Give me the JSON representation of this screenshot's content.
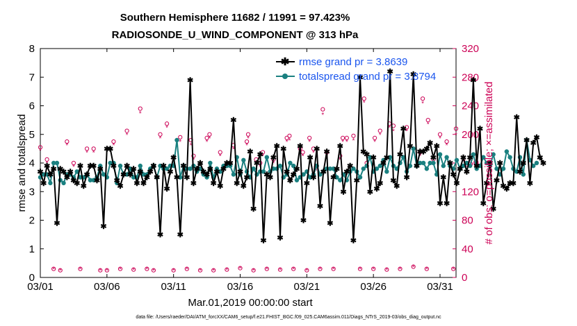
{
  "chart_data": {
    "type": "line",
    "title": "Southern Hemisphere 11682 / 11991 = 97.423%",
    "subtitle": "RADIOSONDE_U_WIND_COMPONENT @ 313 hPa",
    "xlabel": "Mar.01,2019 00:00:00 start",
    "ylabel": "rmse and totalspread",
    "ylabel_right": "# of obs: o=possible; ×=assimilated",
    "footnote": "data file: /Users/raeder/DAI/ATM_forcXX/CAM6_setup/f.e21.FHIST_BGC.f09_025.CAM6assim.011/Diags_NTrS_2019-03/obs_diag_output.nc",
    "xlim": [
      0,
      31.2
    ],
    "ylim": [
      0,
      8
    ],
    "ylim_right": [
      0,
      320
    ],
    "x_ticks": [
      0,
      5,
      10,
      15,
      20,
      25,
      30
    ],
    "x_tick_labels": [
      "03/01",
      "03/06",
      "03/11",
      "03/16",
      "03/21",
      "03/26",
      "03/31"
    ],
    "y_ticks": [
      0,
      1,
      2,
      3,
      4,
      5,
      6,
      7,
      8
    ],
    "y_ticks_right": [
      0,
      40,
      80,
      120,
      160,
      200,
      240,
      280,
      320
    ],
    "x_step_days": 0.25,
    "legend_position": "top-right",
    "series": [
      {
        "name": "rmse",
        "legend_label": "rmse grand pr = 3.8639",
        "color": "#000000",
        "marker": "star",
        "values": [
          3.7,
          3.3,
          3.9,
          3.6,
          3.8,
          1.9,
          3.8,
          3.7,
          3.5,
          3.7,
          3.4,
          3.3,
          3.9,
          3.2,
          3.6,
          3.9,
          3.9,
          3.4,
          3.8,
          1.8,
          4.5,
          4.5,
          3.9,
          3.4,
          3.2,
          3.6,
          3.9,
          3.6,
          3.8,
          3.3,
          3.7,
          3.3,
          3.5,
          3.7,
          3.9,
          3.5,
          1.5,
          3.9,
          3.1,
          3.7,
          4.2,
          3.5,
          1.5,
          3.9,
          3.5,
          6.9,
          3.3,
          3.8,
          4.0,
          3.7,
          3.6,
          3.8,
          3.3,
          3.7,
          3.2,
          3.8,
          4.0,
          4.0,
          5.5,
          3.3,
          3.7,
          3.2,
          3.5,
          4.4,
          2.4,
          4.0,
          4.3,
          1.3,
          3.6,
          3.5,
          4.2,
          4.6,
          1.4,
          4.5,
          3.7,
          3.4,
          3.6,
          3.8,
          4.6,
          2.0,
          3.3,
          4.2,
          3.5,
          4.5,
          2.5,
          3.7,
          4.4,
          1.9,
          3.5,
          3.8,
          4.6,
          3.0,
          3.7,
          3.9,
          1.3,
          3.4,
          7.0,
          4.4,
          4.3,
          3.0,
          4.2,
          3.1,
          3.3,
          4.0,
          4.2,
          7.2,
          3.4,
          3.2,
          4.3,
          5.2,
          3.5,
          4.6,
          7.1,
          3.9,
          4.4,
          4.4,
          4.5,
          4.7,
          4.2,
          4.6,
          2.6,
          3.5,
          2.6,
          4.0,
          3.6,
          3.3,
          3.8,
          4.2,
          3.7,
          4.2,
          6.9,
          3.9,
          5.2,
          2.6,
          3.3,
          4.0,
          2.4,
          3.4,
          4.0,
          3.2,
          3.1,
          3.3,
          3.3,
          5.6,
          3.7,
          4.0,
          4.8,
          3.3,
          4.7,
          4.9,
          4.2,
          4.0
        ]
      },
      {
        "name": "totalspread",
        "legend_label": "totalspread grand pr = 3.8794",
        "color": "#1a8080",
        "marker": "circle",
        "values": [
          3.5,
          3.6,
          3.6,
          3.3,
          4.0,
          4.0,
          3.4,
          3.3,
          3.6,
          3.6,
          3.5,
          3.7,
          3.5,
          3.5,
          3.6,
          3.4,
          3.4,
          3.5,
          3.9,
          3.6,
          3.5,
          4.0,
          4.0,
          3.3,
          3.9,
          3.6,
          3.6,
          3.8,
          3.5,
          3.5,
          3.9,
          3.6,
          3.6,
          3.8,
          3.9,
          3.5,
          3.9,
          3.8,
          3.8,
          3.9,
          3.9,
          4.8,
          3.5,
          3.9,
          3.8,
          3.8,
          3.9,
          3.7,
          3.8,
          3.6,
          3.5,
          4.0,
          3.5,
          3.8,
          3.7,
          3.9,
          3.9,
          3.9,
          3.6,
          4.2,
          3.6,
          4.1,
          3.7,
          3.5,
          3.8,
          3.6,
          3.7,
          3.7,
          4.2,
          3.7,
          3.8,
          3.8,
          3.9,
          3.5,
          3.6,
          4.0,
          3.9,
          3.4,
          3.5,
          3.6,
          3.7,
          3.5,
          3.6,
          3.9,
          3.6,
          3.7,
          3.8,
          3.8,
          3.8,
          3.5,
          3.4,
          3.6,
          3.4,
          3.7,
          3.8,
          3.7,
          3.5,
          3.8,
          3.9,
          4.2,
          3.7,
          3.8,
          3.9,
          4.1,
          3.7,
          4.2,
          3.9,
          3.8,
          4.0,
          4.2,
          3.7,
          3.9,
          4.5,
          3.9,
          4.0,
          4.0,
          3.8,
          4.0,
          4.0,
          3.6,
          4.3,
          3.9,
          4.2,
          3.9,
          3.8,
          4.1,
          3.8,
          3.9,
          4.0,
          3.9,
          4.3,
          3.8,
          3.9,
          4.2,
          4.0,
          3.9,
          4.3,
          3.8,
          3.6,
          3.8,
          4.4,
          4.2,
          3.8,
          3.7,
          4.2,
          3.6,
          4.8,
          4.1,
          3.9,
          4.0
        ]
      },
      {
        "name": "obs possible",
        "color": "#cc0055",
        "marker": "open-circle",
        "axis": "right",
        "values": [
          [
            0,
            182
          ],
          [
            0.5,
            165
          ],
          [
            1,
            12
          ],
          [
            1.5,
            10
          ],
          [
            2,
            190
          ],
          [
            2.5,
            160
          ],
          [
            3,
            12
          ],
          [
            3.5,
            180
          ],
          [
            4,
            180
          ],
          [
            4.5,
            10
          ],
          [
            5,
            10
          ],
          [
            5.5,
            190
          ],
          [
            6,
            12
          ],
          [
            6.5,
            205
          ],
          [
            7,
            11
          ],
          [
            7.5,
            236
          ],
          [
            8,
            12
          ],
          [
            8.5,
            10
          ],
          [
            9,
            200
          ],
          [
            9.5,
            215
          ],
          [
            10,
            10
          ],
          [
            10.5,
            196
          ],
          [
            11,
            12
          ],
          [
            11.5,
            170
          ],
          [
            12,
            10
          ],
          [
            12.5,
            195
          ],
          [
            13,
            10
          ],
          [
            13.5,
            175
          ],
          [
            14,
            11
          ],
          [
            14.5,
            185
          ],
          [
            15,
            13
          ],
          [
            15.5,
            190
          ],
          [
            16,
            10
          ],
          [
            16.5,
            160
          ],
          [
            17,
            12
          ],
          [
            17.5,
            165
          ],
          [
            18,
            11
          ],
          [
            18.5,
            195
          ],
          [
            19,
            12
          ],
          [
            19.5,
            180
          ],
          [
            20,
            10
          ],
          [
            20.5,
            180
          ],
          [
            21,
            12
          ],
          [
            21.5,
            175
          ],
          [
            22,
            12
          ],
          [
            22.5,
            170
          ],
          [
            23,
            195
          ],
          [
            23.5,
            198
          ],
          [
            24,
            12
          ],
          [
            24.5,
            160
          ],
          [
            25,
            12
          ],
          [
            25.5,
            205
          ],
          [
            26,
            11
          ],
          [
            26.5,
            212
          ],
          [
            27,
            12
          ],
          [
            27.5,
            210
          ],
          [
            28,
            15
          ],
          [
            28.5,
            175
          ],
          [
            29,
            12
          ],
          [
            29.5,
            165
          ],
          [
            30,
            200
          ],
          [
            30.5,
            190
          ],
          [
            31,
            12
          ],
          [
            31.2,
            208
          ],
          [
            18.7,
            198
          ],
          [
            20.2,
            195
          ],
          [
            11.3,
            192
          ],
          [
            22.7,
            195
          ],
          [
            24.3,
            250
          ],
          [
            21.2,
            235
          ],
          [
            26.2,
            215
          ],
          [
            28.7,
            250
          ],
          [
            29.1,
            220
          ],
          [
            19.7,
            175
          ],
          [
            20.7,
            155
          ],
          [
            16.2,
            165
          ],
          [
            12.7,
            200
          ],
          [
            16.7,
            175
          ],
          [
            25.1,
            195
          ],
          [
            15.6,
            200
          ]
        ]
      },
      {
        "name": "obs assimilated",
        "color": "#cc0055",
        "marker": "asterisk",
        "axis": "right",
        "values": [
          [
            0,
            178
          ],
          [
            0.5,
            160
          ],
          [
            1,
            12
          ],
          [
            1.5,
            10
          ],
          [
            2,
            185
          ],
          [
            2.5,
            155
          ],
          [
            3,
            12
          ],
          [
            3.5,
            175
          ],
          [
            4,
            175
          ],
          [
            4.5,
            10
          ],
          [
            5,
            10
          ],
          [
            5.5,
            185
          ],
          [
            6,
            12
          ],
          [
            6.5,
            200
          ],
          [
            7,
            11
          ],
          [
            7.5,
            230
          ],
          [
            8,
            12
          ],
          [
            8.5,
            10
          ],
          [
            9,
            195
          ],
          [
            9.5,
            210
          ],
          [
            10,
            10
          ],
          [
            10.5,
            190
          ],
          [
            11,
            12
          ],
          [
            11.5,
            165
          ],
          [
            12,
            10
          ],
          [
            12.5,
            190
          ],
          [
            13,
            10
          ],
          [
            13.5,
            170
          ],
          [
            14,
            11
          ],
          [
            14.5,
            180
          ],
          [
            15,
            13
          ],
          [
            15.5,
            185
          ],
          [
            16,
            10
          ],
          [
            16.5,
            155
          ],
          [
            17,
            12
          ],
          [
            17.5,
            160
          ],
          [
            18,
            11
          ],
          [
            18.5,
            190
          ],
          [
            19,
            12
          ],
          [
            19.5,
            175
          ],
          [
            20,
            10
          ],
          [
            20.5,
            175
          ],
          [
            21,
            12
          ],
          [
            21.5,
            170
          ],
          [
            22,
            12
          ],
          [
            22.5,
            165
          ],
          [
            23,
            190
          ],
          [
            23.5,
            192
          ],
          [
            24,
            12
          ],
          [
            24.5,
            155
          ],
          [
            25,
            12
          ],
          [
            25.5,
            200
          ],
          [
            26,
            11
          ],
          [
            26.5,
            205
          ],
          [
            27,
            12
          ],
          [
            27.5,
            205
          ],
          [
            28,
            15
          ],
          [
            28.5,
            170
          ],
          [
            29,
            12
          ],
          [
            29.5,
            160
          ],
          [
            30,
            195
          ],
          [
            30.5,
            185
          ],
          [
            31,
            12
          ],
          [
            31.2,
            200
          ],
          [
            18.7,
            192
          ],
          [
            20.2,
            190
          ],
          [
            11.3,
            185
          ],
          [
            22.7,
            190
          ],
          [
            24.3,
            245
          ],
          [
            21.2,
            228
          ],
          [
            26.2,
            210
          ],
          [
            28.7,
            244
          ],
          [
            29.1,
            215
          ],
          [
            19.7,
            170
          ],
          [
            20.7,
            150
          ],
          [
            16.2,
            160
          ],
          [
            12.7,
            195
          ],
          [
            16.7,
            170
          ],
          [
            25.1,
            190
          ],
          [
            15.6,
            195
          ]
        ]
      }
    ]
  }
}
